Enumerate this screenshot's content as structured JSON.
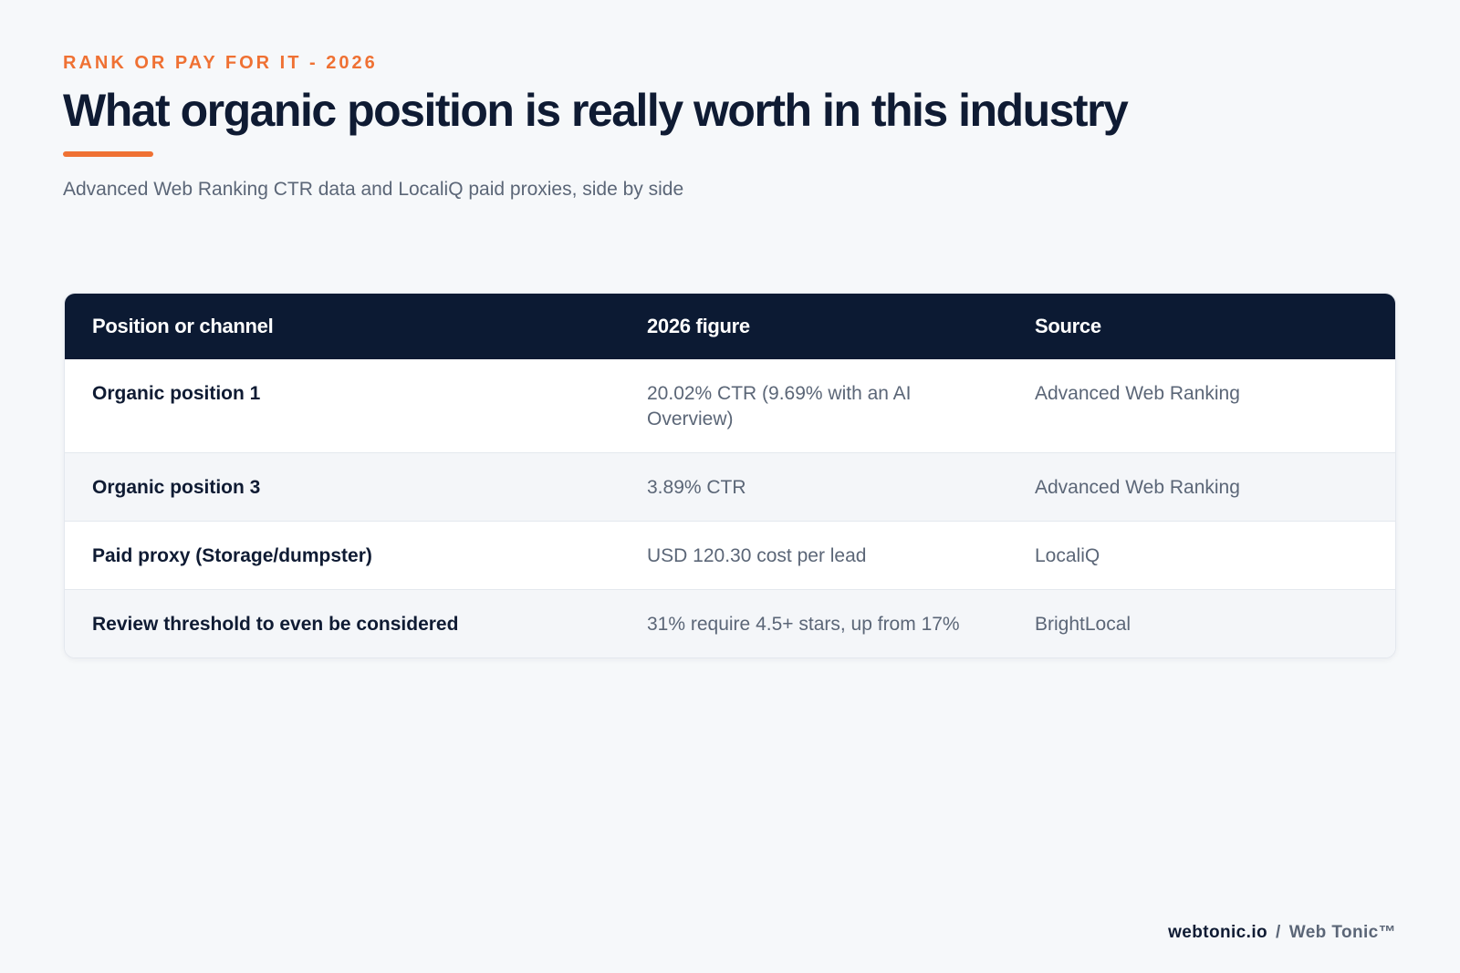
{
  "header": {
    "eyebrow": "RANK OR PAY FOR IT - 2026",
    "title": "What organic position is really worth in this industry",
    "subtitle": "Advanced Web Ranking CTR data and LocaliQ paid proxies, side by side"
  },
  "table": {
    "columns": [
      "Position or channel",
      "2026 figure",
      "Source"
    ],
    "rows": [
      {
        "label": "Organic position 1",
        "figure": "20.02% CTR (9.69% with an AI Overview)",
        "source": "Advanced Web Ranking"
      },
      {
        "label": "Organic position 3",
        "figure": "3.89% CTR",
        "source": "Advanced Web Ranking"
      },
      {
        "label": "Paid proxy (Storage/dumpster)",
        "figure": "USD 120.30 cost per lead",
        "source": "LocaliQ"
      },
      {
        "label": "Review threshold to even be considered",
        "figure": "31% require 4.5+ stars, up from 17%",
        "source": "BrightLocal"
      }
    ]
  },
  "footer": {
    "domain": "webtonic.io",
    "separator": "/",
    "brand": "Web Tonic™"
  },
  "colors": {
    "accent": "#ef7133",
    "navy": "#0c1a33",
    "background": "#f6f8fa",
    "muted_text": "#5b6677"
  }
}
